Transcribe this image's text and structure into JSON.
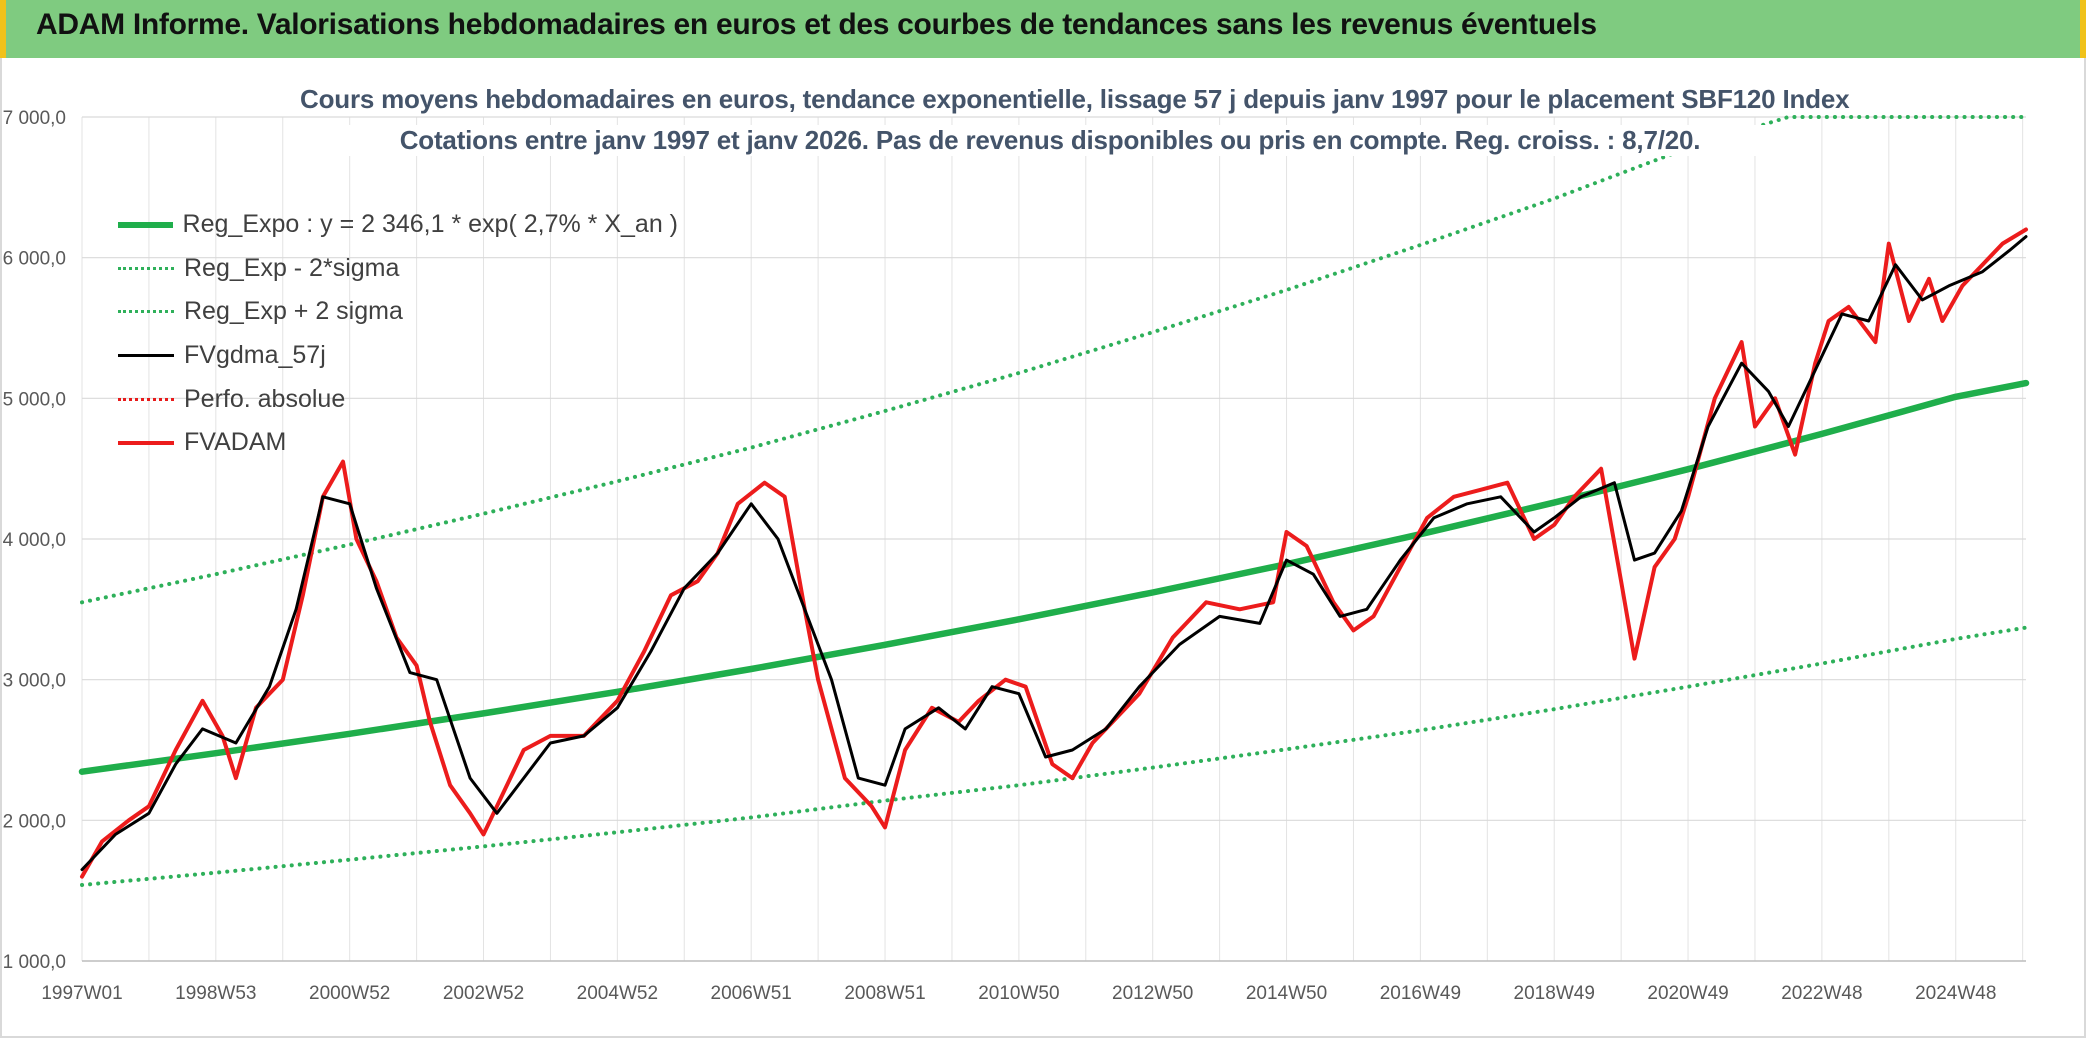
{
  "header": {
    "title": "ADAM Informe. Valorisations hebdomadaires en euros et des courbes de tendances sans les revenus éventuels"
  },
  "colors": {
    "header_bg": "#7fcb80",
    "reg_expo": "#1fae4b",
    "band": "#2eb05a",
    "fvgdma": "#000000",
    "perfo": "#e81a1a",
    "fvadam": "#ec1c1c"
  },
  "chart_data": {
    "type": "line",
    "title": "Cours moyens hebdomadaires en euros, tendance exponentielle, lissage 57 j depuis janv 1997 pour le placement SBF120 Index",
    "subtitle": "Cotations entre janv 1997 et janv 2026. Pas de revenus disponibles ou pris en compte. Reg. croiss. : 8,7/20.",
    "xlabel": "",
    "ylabel": "",
    "x_range": [
      1997.0,
      2026.05
    ],
    "ylim": [
      1000,
      7000
    ],
    "grid": true,
    "legend_position": "top-left",
    "x_ticks": [
      {
        "label": "1997W01",
        "x": 1997.0
      },
      {
        "label": "1998W53",
        "x": 1999.0
      },
      {
        "label": "2000W52",
        "x": 2001.0
      },
      {
        "label": "2002W52",
        "x": 2003.0
      },
      {
        "label": "2004W52",
        "x": 2005.0
      },
      {
        "label": "2006W51",
        "x": 2007.0
      },
      {
        "label": "2008W51",
        "x": 2009.0
      },
      {
        "label": "2010W50",
        "x": 2011.0
      },
      {
        "label": "2012W50",
        "x": 2013.0
      },
      {
        "label": "2014W50",
        "x": 2015.0
      },
      {
        "label": "2016W49",
        "x": 2017.0
      },
      {
        "label": "2018W49",
        "x": 2019.0
      },
      {
        "label": "2020W49",
        "x": 2021.0
      },
      {
        "label": "2022W48",
        "x": 2023.0
      },
      {
        "label": "2024W48",
        "x": 2025.0
      }
    ],
    "y_ticks": [
      {
        "label": "1 000,0",
        "y": 1000
      },
      {
        "label": "2 000,0",
        "y": 2000
      },
      {
        "label": "3 000,0",
        "y": 3000
      },
      {
        "label": "4 000,0",
        "y": 4000
      },
      {
        "label": "5 000,0",
        "y": 5000
      },
      {
        "label": "6 000,0",
        "y": 6000
      },
      {
        "label": "7 000,0",
        "y": 7000
      }
    ],
    "series": [
      {
        "name": "Reg_Expo : y = 2 346,1 * exp( 2,7% *  X_an )",
        "style": "solid-thick",
        "x": [
          1997,
          1999,
          2001,
          2003,
          2005,
          2007,
          2009,
          2011,
          2013,
          2015,
          2017,
          2019,
          2021,
          2023,
          2025,
          2026.05
        ],
        "y": [
          2346,
          2477,
          2615,
          2760,
          2914,
          3076,
          3248,
          3429,
          3620,
          3821,
          4034,
          4259,
          4496,
          4747,
          5011,
          5108
        ]
      },
      {
        "name": "Reg_Exp - 2*sigma",
        "style": "dotted",
        "x": [
          1997,
          1999,
          2001,
          2003,
          2005,
          2007,
          2009,
          2011,
          2013,
          2015,
          2017,
          2019,
          2021,
          2023,
          2025,
          2026.05
        ],
        "y": [
          1540,
          1628,
          1720,
          1815,
          1915,
          2020,
          2140,
          2250,
          2375,
          2505,
          2640,
          2790,
          2950,
          3115,
          3290,
          3370
        ]
      },
      {
        "name": "Reg_Exp + 2 sigma",
        "style": "dotted",
        "x": [
          1997,
          1999,
          2001,
          2003,
          2005,
          2007,
          2009,
          2011,
          2013,
          2015,
          2017,
          2019,
          2021,
          2022.5,
          2023.5,
          2024,
          2026.05
        ],
        "y": [
          3550,
          3750,
          3960,
          4180,
          4410,
          4650,
          4910,
          5180,
          5470,
          5770,
          6090,
          6420,
          6780,
          7000,
          7000,
          7000,
          7000
        ]
      },
      {
        "name": "FVgdma_57j",
        "style": "solid-thin",
        "x": [
          1997,
          1997.5,
          1998,
          1998.4,
          1998.8,
          1999.3,
          1999.8,
          2000.2,
          2000.6,
          2001.0,
          2001.4,
          2001.9,
          2002.3,
          2002.8,
          2003.2,
          2003.6,
          2004.0,
          2004.5,
          2005.0,
          2005.5,
          2006.0,
          2006.5,
          2007.0,
          2007.4,
          2007.8,
          2008.2,
          2008.6,
          2009.0,
          2009.3,
          2009.8,
          2010.2,
          2010.6,
          2011.0,
          2011.4,
          2011.8,
          2012.3,
          2012.8,
          2013.4,
          2014.0,
          2014.6,
          2015.0,
          2015.4,
          2015.8,
          2016.2,
          2016.7,
          2017.2,
          2017.7,
          2018.2,
          2018.7,
          2019.0,
          2019.4,
          2019.9,
          2020.2,
          2020.5,
          2020.9,
          2021.3,
          2021.8,
          2022.2,
          2022.5,
          2022.9,
          2023.3,
          2023.7,
          2024.1,
          2024.5,
          2024.9,
          2025.4,
          2025.8,
          2026.05
        ],
        "y": [
          1650,
          1900,
          2050,
          2400,
          2650,
          2550,
          2950,
          3500,
          4300,
          4250,
          3650,
          3050,
          3000,
          2300,
          2050,
          2300,
          2550,
          2600,
          2800,
          3200,
          3650,
          3900,
          4250,
          4000,
          3500,
          3000,
          2300,
          2250,
          2650,
          2800,
          2650,
          2950,
          2900,
          2450,
          2500,
          2650,
          2950,
          3250,
          3450,
          3400,
          3850,
          3750,
          3450,
          3500,
          3850,
          4150,
          4250,
          4300,
          4050,
          4150,
          4300,
          4400,
          3850,
          3900,
          4200,
          4800,
          5250,
          5050,
          4800,
          5200,
          5600,
          5550,
          5950,
          5700,
          5800,
          5900,
          6050,
          6150
        ]
      },
      {
        "name": "Perfo. absolue",
        "style": "dotted-red",
        "x": [],
        "y": []
      },
      {
        "name": "FVADAM",
        "style": "solid-red",
        "x": [
          1997,
          1997.3,
          1997.7,
          1998.0,
          1998.4,
          1998.8,
          1999.1,
          1999.3,
          1999.6,
          2000.0,
          2000.3,
          2000.6,
          2000.9,
          2001.1,
          2001.4,
          2001.7,
          2002.0,
          2002.2,
          2002.5,
          2002.8,
          2003.0,
          2003.3,
          2003.6,
          2004.0,
          2004.5,
          2005.0,
          2005.4,
          2005.8,
          2006.2,
          2006.5,
          2006.8,
          2007.2,
          2007.5,
          2007.8,
          2008.0,
          2008.4,
          2008.8,
          2009.0,
          2009.3,
          2009.7,
          2010.1,
          2010.4,
          2010.8,
          2011.1,
          2011.5,
          2011.8,
          2012.1,
          2012.4,
          2012.8,
          2013.3,
          2013.8,
          2014.3,
          2014.8,
          2015.0,
          2015.3,
          2015.7,
          2016.0,
          2016.3,
          2016.7,
          2017.1,
          2017.5,
          2017.9,
          2018.3,
          2018.7,
          2019.0,
          2019.3,
          2019.7,
          2020.0,
          2020.2,
          2020.5,
          2020.8,
          2021.0,
          2021.4,
          2021.8,
          2022.0,
          2022.3,
          2022.6,
          2022.9,
          2023.1,
          2023.4,
          2023.8,
          2024.0,
          2024.3,
          2024.6,
          2024.8,
          2025.1,
          2025.4,
          2025.7,
          2026.05
        ],
        "y": [
          1600,
          1850,
          2000,
          2100,
          2500,
          2850,
          2600,
          2300,
          2800,
          3000,
          3600,
          4300,
          4550,
          4000,
          3700,
          3300,
          3100,
          2700,
          2250,
          2050,
          1900,
          2200,
          2500,
          2600,
          2600,
          2850,
          3200,
          3600,
          3700,
          3900,
          4250,
          4400,
          4300,
          3500,
          3000,
          2300,
          2100,
          1950,
          2500,
          2800,
          2700,
          2850,
          3000,
          2950,
          2400,
          2300,
          2550,
          2700,
          2900,
          3300,
          3550,
          3500,
          3550,
          4050,
          3950,
          3550,
          3350,
          3450,
          3800,
          4150,
          4300,
          4350,
          4400,
          4000,
          4100,
          4300,
          4500,
          3700,
          3150,
          3800,
          4000,
          4300,
          5000,
          5400,
          4800,
          5000,
          4600,
          5250,
          5550,
          5650,
          5400,
          6100,
          5550,
          5850,
          5550,
          5800,
          5950,
          6100,
          6200
        ]
      }
    ]
  }
}
